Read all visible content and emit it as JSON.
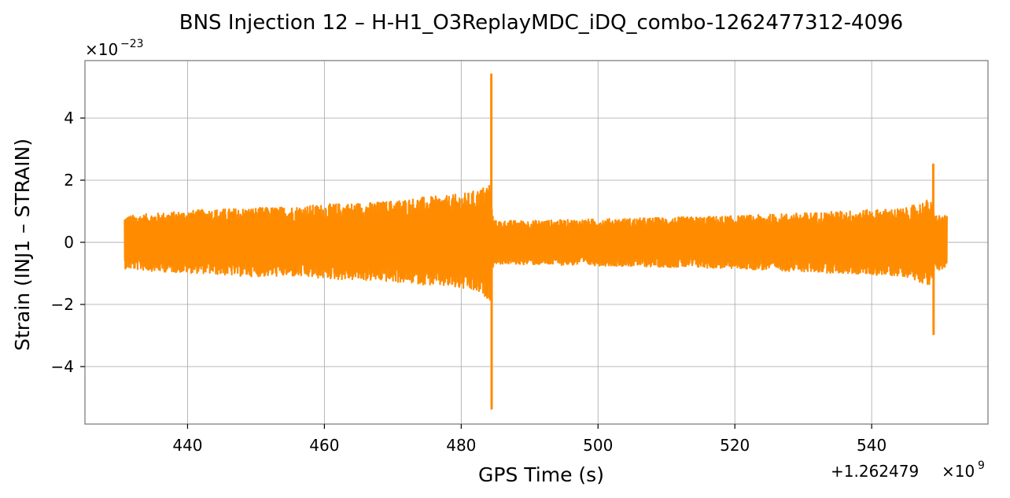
{
  "chart_data": {
    "type": "line",
    "title": "BNS Injection 12 – H-H1_O3ReplayMDC_iDQ_combo-1262477312-4096",
    "xlabel": "GPS Time (s)",
    "ylabel": "Strain (INJ1 – STRAIN)",
    "x_offset_label": "+1.262479",
    "x_offset_exponent": "9",
    "y_scale_base": "×10",
    "y_scale_exponent": "−23",
    "xlim": [
      425,
      557
    ],
    "ylim": [
      -5.85,
      5.85
    ],
    "x_ticks": [
      440,
      460,
      480,
      500,
      520,
      540
    ],
    "x_tick_labels": [
      "440",
      "460",
      "480",
      "500",
      "520",
      "540"
    ],
    "y_ticks": [
      -4,
      -2,
      0,
      2,
      4
    ],
    "y_tick_labels": [
      "−4",
      "−2",
      "0",
      "2",
      "4"
    ],
    "grid": true,
    "line_color": "#ff8c00",
    "grid_color": "#b0b0b0",
    "series": [
      {
        "x_start": 430.8,
        "x_end": 551.0,
        "envelope": [
          {
            "x": 430.8,
            "upper": 0.85,
            "lower": -0.85
          },
          {
            "x": 436,
            "upper": 0.95,
            "lower": -0.95
          },
          {
            "x": 442,
            "upper": 1.05,
            "lower": -1.0
          },
          {
            "x": 448,
            "upper": 1.1,
            "lower": -1.1
          },
          {
            "x": 455,
            "upper": 1.15,
            "lower": -1.1
          },
          {
            "x": 462,
            "upper": 1.25,
            "lower": -1.2
          },
          {
            "x": 468,
            "upper": 1.3,
            "lower": -1.25
          },
          {
            "x": 474,
            "upper": 1.45,
            "lower": -1.35
          },
          {
            "x": 478,
            "upper": 1.5,
            "lower": -1.45
          },
          {
            "x": 481,
            "upper": 1.6,
            "lower": -1.55
          },
          {
            "x": 483,
            "upper": 1.75,
            "lower": -1.7
          },
          {
            "x": 484.2,
            "upper": 1.95,
            "lower": -1.85
          },
          {
            "x": 484.7,
            "upper": 0.7,
            "lower": -0.7
          },
          {
            "x": 490,
            "upper": 0.7,
            "lower": -0.72
          },
          {
            "x": 500,
            "upper": 0.75,
            "lower": -0.75
          },
          {
            "x": 510,
            "upper": 0.8,
            "lower": -0.8
          },
          {
            "x": 520,
            "upper": 0.85,
            "lower": -0.85
          },
          {
            "x": 530,
            "upper": 0.95,
            "lower": -0.95
          },
          {
            "x": 540,
            "upper": 1.05,
            "lower": -1.05
          },
          {
            "x": 545,
            "upper": 1.1,
            "lower": -1.1
          },
          {
            "x": 548.5,
            "upper": 1.4,
            "lower": -1.4
          },
          {
            "x": 549.3,
            "upper": 0.9,
            "lower": -0.9
          },
          {
            "x": 551.0,
            "upper": 0.85,
            "lower": -0.85
          }
        ],
        "spikes": [
          {
            "x": 484.4,
            "y": 5.4
          },
          {
            "x": 484.45,
            "y": -5.35
          },
          {
            "x": 549.0,
            "y": 2.5
          },
          {
            "x": 549.05,
            "y": -2.95
          }
        ]
      }
    ]
  }
}
